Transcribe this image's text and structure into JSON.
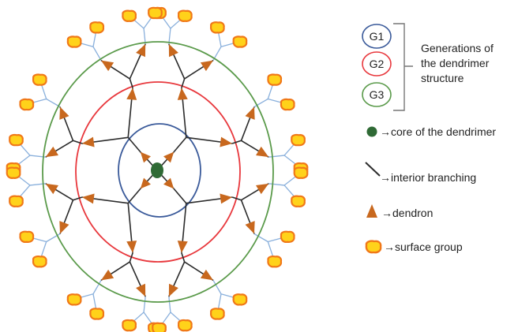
{
  "colors": {
    "g1": "#3a5a9a",
    "g2": "#e8383d",
    "g3": "#5a9a4a",
    "core": "#2f6a35",
    "branch": "#2b2b2b",
    "dendron": "#c8681e",
    "surface_fill": "#ffd21a",
    "surface_stroke": "#f07818",
    "stem": "#8ab0dc"
  },
  "diagram": {
    "rings": [
      {
        "name": "g1-ring",
        "color_key": "g1"
      },
      {
        "name": "g2-ring",
        "color_key": "g2"
      },
      {
        "name": "g3-ring",
        "color_key": "g3"
      }
    ]
  },
  "legend": {
    "generations": {
      "items": [
        {
          "label": "G1",
          "color_key": "g1"
        },
        {
          "label": "G2",
          "color_key": "g2"
        },
        {
          "label": "G3",
          "color_key": "g3"
        }
      ],
      "description_lines": [
        "Generations of",
        "the dendrimer",
        "structure"
      ]
    },
    "core_label": "→core of the dendrimer",
    "branching_label": "→interior branching",
    "dendron_label": "→dendron",
    "surface_label": "→surface group"
  }
}
